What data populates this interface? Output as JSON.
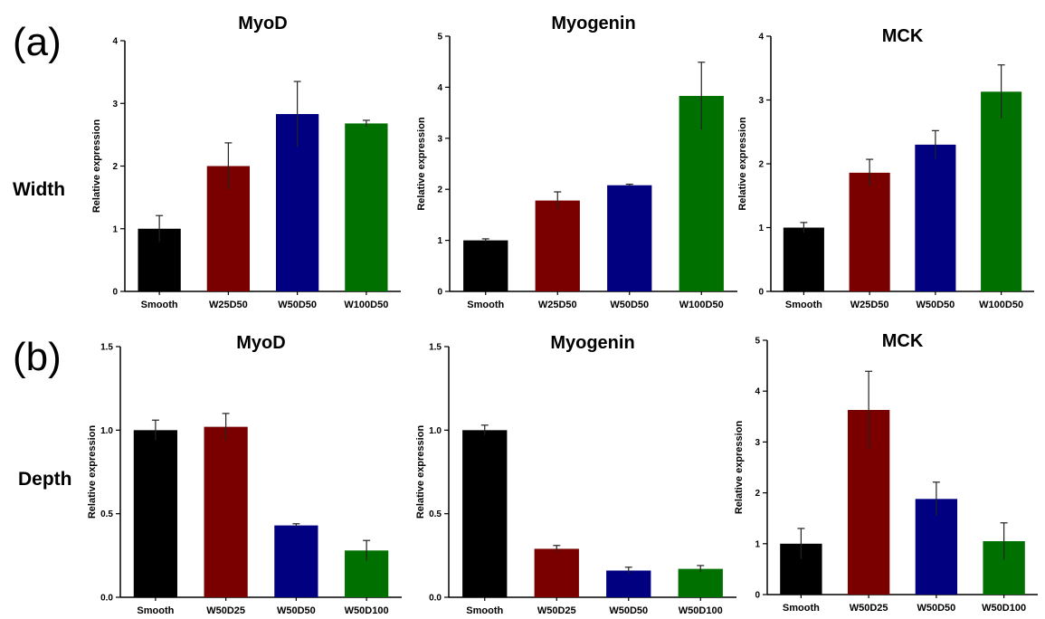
{
  "labels": {
    "panel_a": "(a)",
    "panel_b": "(b)",
    "row_a": "Width",
    "row_b": "Depth"
  },
  "colors": [
    "#000000",
    "#7a0000",
    "#000080",
    "#007000"
  ],
  "chart_data": [
    {
      "type": "bar",
      "title": "MyoD",
      "ylabel": "Relative expression",
      "xlabel": "",
      "categories": [
        "Smooth",
        "W25D50",
        "W50D50",
        "W100D50"
      ],
      "values": [
        1.0,
        2.0,
        2.83,
        2.68
      ],
      "errors": [
        0.21,
        0.37,
        0.52,
        0.05
      ],
      "ylim": [
        0,
        4
      ],
      "yticks": [
        "0",
        "1",
        "2",
        "3",
        "4"
      ],
      "yticks_v": [
        0,
        1,
        2,
        3,
        4
      ]
    },
    {
      "type": "bar",
      "title": "Myogenin",
      "ylabel": "Relative expression",
      "xlabel": "",
      "categories": [
        "Smooth",
        "W25D50",
        "W50D50",
        "W100D50"
      ],
      "values": [
        1.0,
        1.78,
        2.08,
        3.83
      ],
      "errors": [
        0.03,
        0.17,
        0.02,
        0.66
      ],
      "ylim": [
        0,
        5
      ],
      "yticks": [
        "0",
        "1",
        "2",
        "3",
        "4",
        "5"
      ],
      "yticks_v": [
        0,
        1,
        2,
        3,
        4,
        5
      ]
    },
    {
      "type": "bar",
      "title": "MCK",
      "ylabel": "Relative expression",
      "xlabel": "",
      "categories": [
        "Smooth",
        "W25D50",
        "W50D50",
        "W100D50"
      ],
      "values": [
        1.0,
        1.86,
        2.3,
        3.13
      ],
      "errors": [
        0.08,
        0.21,
        0.22,
        0.42
      ],
      "ylim": [
        0,
        4
      ],
      "yticks": [
        "0",
        "1",
        "2",
        "3",
        "4"
      ],
      "yticks_v": [
        0,
        1,
        2,
        3,
        4
      ]
    },
    {
      "type": "bar",
      "title": "MyoD",
      "ylabel": "Relative expression",
      "xlabel": "",
      "categories": [
        "Smooth",
        "W50D25",
        "W50D50",
        "W50D100"
      ],
      "values": [
        1.0,
        1.02,
        0.43,
        0.28
      ],
      "errors": [
        0.06,
        0.08,
        0.01,
        0.06
      ],
      "ylim": [
        0,
        1.5
      ],
      "yticks": [
        "0.0",
        "0.5",
        "1.0",
        "1.5"
      ],
      "yticks_v": [
        0,
        0.5,
        1.0,
        1.5
      ]
    },
    {
      "type": "bar",
      "title": "Myogenin",
      "ylabel": "Relative expression",
      "xlabel": "",
      "categories": [
        "Smooth",
        "W50D25",
        "W50D50",
        "W50D100"
      ],
      "values": [
        1.0,
        0.29,
        0.16,
        0.17
      ],
      "errors": [
        0.03,
        0.02,
        0.02,
        0.02
      ],
      "ylim": [
        0,
        1.5
      ],
      "yticks": [
        "0.0",
        "0.5",
        "1.0",
        "1.5"
      ],
      "yticks_v": [
        0,
        0.5,
        1.0,
        1.5
      ]
    },
    {
      "type": "bar",
      "title": "MCK",
      "ylabel": "Relative expression",
      "xlabel": "",
      "categories": [
        "Smooth",
        "W50D25",
        "W50D50",
        "W50D100"
      ],
      "values": [
        1.0,
        3.63,
        1.88,
        1.05
      ],
      "errors": [
        0.3,
        0.76,
        0.33,
        0.36
      ],
      "ylim": [
        0,
        5
      ],
      "yticks": [
        "0",
        "1",
        "2",
        "3",
        "4",
        "5"
      ],
      "yticks_v": [
        0,
        1,
        2,
        3,
        4,
        5
      ]
    }
  ]
}
